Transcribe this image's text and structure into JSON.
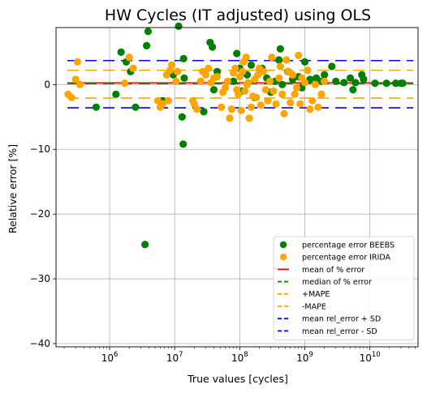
{
  "chart_data": {
    "type": "scatter",
    "title": "HW Cycles (IT adjusted) using OLS",
    "xlabel": "True values [cycles]",
    "ylabel": "Relative error [%]",
    "xscale": "log",
    "xlim": [
      150000,
      55000000000
    ],
    "ylim": [
      -40.5,
      8.8
    ],
    "grid": true,
    "legend_position": "lower right",
    "x_ticks": [
      {
        "value": 1000000,
        "base": "10",
        "exp": "6"
      },
      {
        "value": 10000000,
        "base": "10",
        "exp": "7"
      },
      {
        "value": 100000000,
        "base": "10",
        "exp": "8"
      },
      {
        "value": 1000000000,
        "base": "10",
        "exp": "9"
      },
      {
        "value": 10000000000,
        "base": "10",
        "exp": "10"
      }
    ],
    "y_ticks": [
      {
        "value": 0,
        "label": "0"
      },
      {
        "value": -10,
        "label": "−10"
      },
      {
        "value": -20,
        "label": "−20"
      },
      {
        "value": -30,
        "label": "−30"
      },
      {
        "value": -40,
        "label": "−40"
      }
    ],
    "series": [
      {
        "name": "percentage error BEEBS",
        "kind": "scatter",
        "color": "#008000",
        "x": [
          620000,
          1250000,
          1500000,
          1800000,
          2100000,
          2500000,
          3500000,
          3700000,
          3900000,
          6500000,
          9500000,
          11500000,
          13000000,
          13500000,
          13700000,
          14000000,
          28000000,
          35000000,
          38000000,
          40000000,
          45000000,
          80000000,
          90000000,
          100000000,
          110000000,
          130000000,
          150000000,
          170000000,
          220000000,
          260000000,
          300000000,
          350000000,
          400000000,
          420000000,
          450000000,
          550000000,
          650000000,
          800000000,
          900000000,
          1000000000,
          1200000000,
          1500000000,
          1800000000,
          2000000000,
          2600000000,
          3000000000,
          4000000000,
          5000000000,
          5500000000,
          6000000000,
          7500000000,
          8000000000,
          12000000000,
          18000000000,
          25000000000,
          30000000000,
          32000000000
        ],
        "y": [
          -3.5,
          -1.5,
          5.0,
          3.5,
          2.0,
          -3.5,
          -24.7,
          6.0,
          8.2,
          -2.5,
          1.5,
          9.0,
          -5.0,
          -9.2,
          4.0,
          1.0,
          -4.2,
          6.5,
          5.8,
          -0.8,
          2.0,
          0.5,
          4.8,
          2.5,
          -1.0,
          1.5,
          3.0,
          -2.0,
          2.5,
          1.0,
          -1.2,
          0.5,
          3.8,
          5.5,
          0.0,
          2.0,
          0.8,
          1.2,
          -0.5,
          3.5,
          0.8,
          1.0,
          0.5,
          1.5,
          2.8,
          0.5,
          0.3,
          1.0,
          -0.8,
          0.3,
          1.5,
          0.8,
          0.2,
          0.2,
          0.2,
          0.2,
          0.2
        ]
      },
      {
        "name": "percentage error IRIDA",
        "kind": "scatter",
        "color": "#ffa500",
        "x": [
          230000,
          260000,
          300000,
          320000,
          350000,
          1700000,
          2000000,
          2300000,
          5500000,
          6000000,
          6500000,
          7500000,
          8000000,
          8500000,
          9000000,
          10500000,
          11000000,
          19000000,
          20000000,
          22000000,
          25000000,
          27000000,
          30000000,
          33000000,
          36000000,
          40000000,
          45000000,
          52000000,
          55000000,
          60000000,
          65000000,
          70000000,
          75000000,
          80000000,
          85000000,
          90000000,
          95000000,
          100000000,
          105000000,
          110000000,
          115000000,
          120000000,
          125000000,
          130000000,
          135000000,
          140000000,
          150000000,
          160000000,
          170000000,
          180000000,
          190000000,
          200000000,
          210000000,
          230000000,
          250000000,
          270000000,
          290000000,
          310000000,
          330000000,
          360000000,
          400000000,
          420000000,
          450000000,
          480000000,
          520000000,
          560000000,
          600000000,
          650000000,
          700000000,
          750000000,
          800000000,
          850000000,
          900000000,
          1000000000,
          1100000000,
          1200000000,
          1300000000,
          1450000000,
          1600000000,
          1800000000,
          2000000000
        ],
        "y": [
          -1.5,
          -2.0,
          0.8,
          3.5,
          0.0,
          0.2,
          4.2,
          2.5,
          -2.5,
          -3.5,
          -3.0,
          1.5,
          -2.5,
          2.2,
          3.0,
          0.5,
          2.0,
          -2.5,
          -3.0,
          -3.8,
          0.5,
          2.0,
          1.5,
          2.5,
          0.3,
          1.0,
          1.2,
          -3.5,
          -1.2,
          -0.5,
          0.5,
          -5.2,
          -3.8,
          1.8,
          2.5,
          -0.8,
          -1.5,
          1.2,
          -4.0,
          2.0,
          3.5,
          -1.0,
          4.2,
          0.0,
          0.3,
          -5.2,
          -3.5,
          -1.8,
          0.8,
          -2.0,
          1.5,
          2.5,
          -3.2,
          2.0,
          -0.8,
          -2.5,
          0.5,
          4.2,
          -1.0,
          -3.0,
          1.0,
          2.8,
          -1.5,
          -4.5,
          3.8,
          2.0,
          -2.8,
          1.5,
          -1.5,
          -0.5,
          4.5,
          -3.0,
          1.0,
          0.3,
          2.2,
          -3.8,
          -2.5,
          0.0,
          -3.5,
          -1.5,
          0.5
        ]
      },
      {
        "name": "mean of % error",
        "kind": "hline",
        "value": 0.25,
        "color": "#ff0000",
        "dash": "solid"
      },
      {
        "name": "median of % error",
        "kind": "hline",
        "value": 0.15,
        "color": "#008000",
        "dash": "dashed"
      },
      {
        "name": "+MAPE",
        "kind": "hline",
        "value": 2.2,
        "color": "#ffa500",
        "dash": "dashed"
      },
      {
        "name": "-MAPE",
        "kind": "hline",
        "value": -2.1,
        "color": "#ffa500",
        "dash": "dashed"
      },
      {
        "name": "mean rel_error + SD",
        "kind": "hline",
        "value": 3.7,
        "color": "#0000ff",
        "dash": "dashed"
      },
      {
        "name": "mean rel_error - SD",
        "kind": "hline",
        "value": -3.6,
        "color": "#0000ff",
        "dash": "dashed"
      }
    ]
  }
}
